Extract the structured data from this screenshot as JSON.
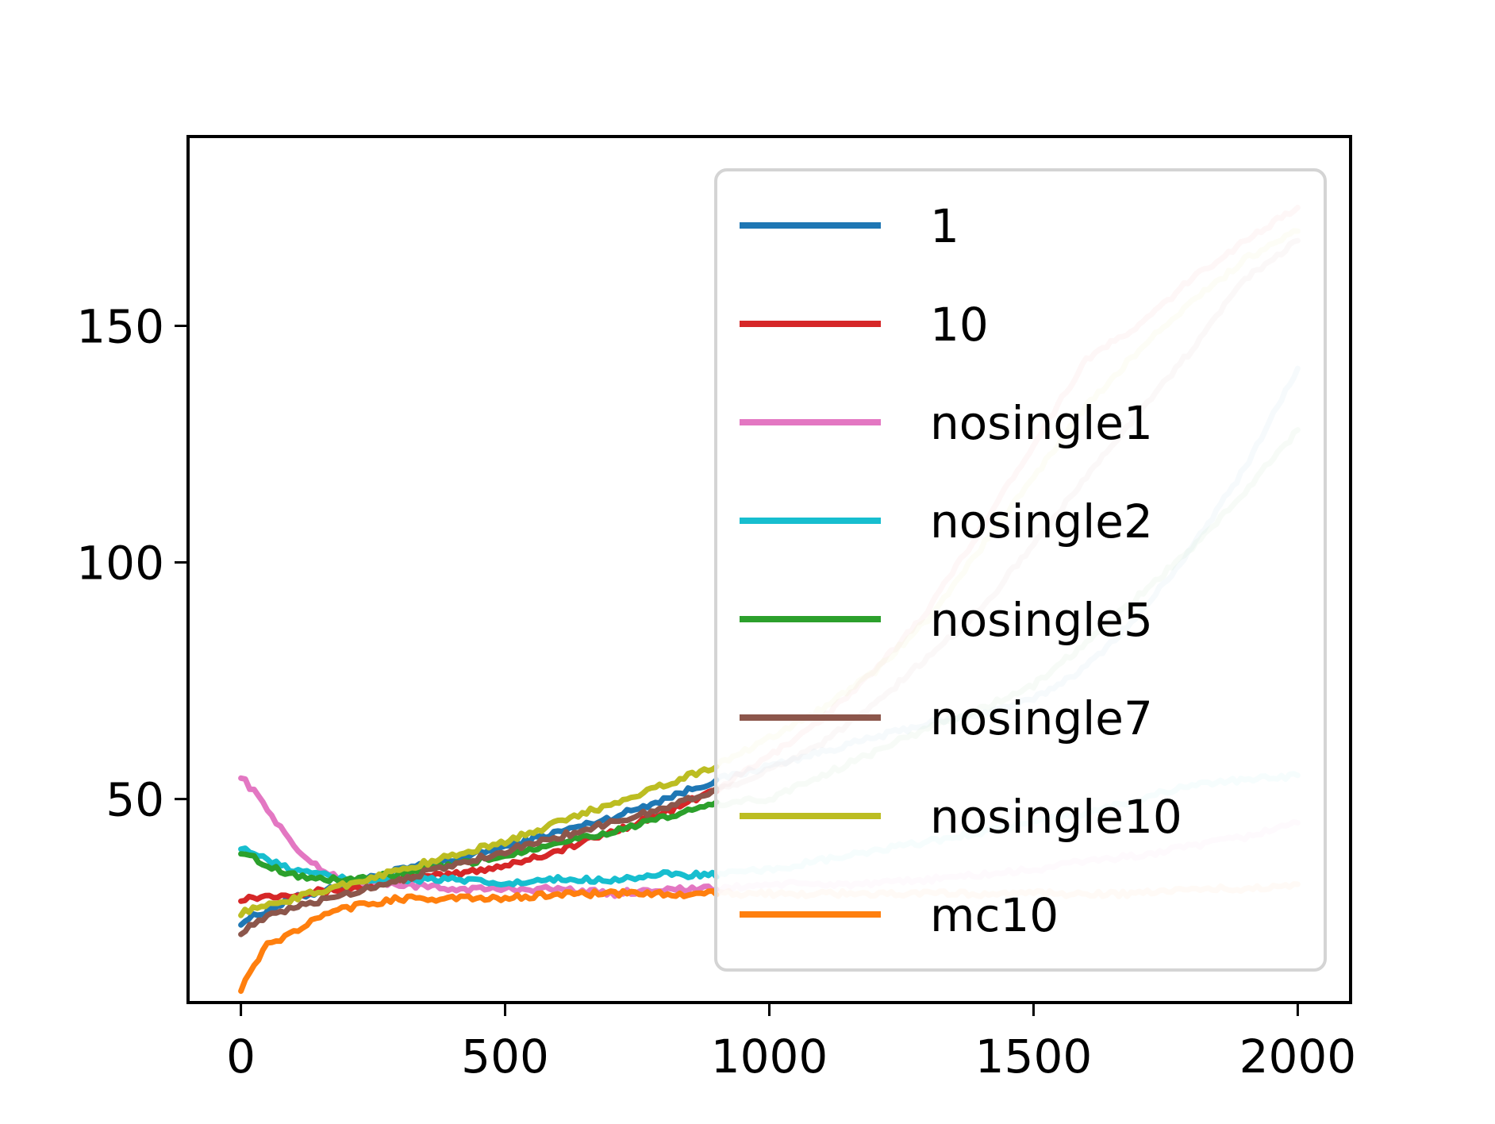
{
  "chart_data": {
    "type": "line",
    "title": "",
    "xlabel": "",
    "ylabel": "",
    "xlim": [
      -100,
      2100
    ],
    "ylim": [
      7,
      190
    ],
    "xticks": [
      0,
      500,
      1000,
      1500,
      2000
    ],
    "yticks": [
      50,
      100,
      150
    ],
    "grid": false,
    "legend_position": "top-right",
    "note_faded": "portion of each series at x > 900 is drawn semi-transparent (behind legend area)",
    "series": [
      {
        "name": "1",
        "color": "#1f77b4",
        "x": [
          0,
          100,
          200,
          300,
          400,
          500,
          600,
          700,
          800,
          900,
          1000,
          1100,
          1200,
          1300,
          1400,
          1500,
          1600,
          1700,
          1800,
          1900,
          2000
        ],
        "y": [
          24,
          29,
          32,
          35,
          37,
          40,
          43,
          46,
          50,
          54,
          57,
          60,
          63,
          66,
          68,
          71,
          78,
          89,
          103,
          120,
          141
        ]
      },
      {
        "name": "10",
        "color": "#d62728",
        "x": [
          0,
          100,
          200,
          300,
          400,
          500,
          600,
          700,
          800,
          900,
          1000,
          1100,
          1200,
          1300,
          1400,
          1500,
          1600,
          1700,
          1800,
          1900,
          2000
        ],
        "y": [
          29,
          30,
          31,
          33,
          34,
          36,
          39,
          43,
          47,
          52,
          59,
          67,
          77,
          90,
          107,
          125,
          143,
          150,
          160,
          168,
          175
        ]
      },
      {
        "name": "nosingle1",
        "color": "#e377c2",
        "x": [
          0,
          50,
          100,
          150,
          200,
          300,
          400,
          500,
          600,
          700,
          800,
          900,
          1000,
          1100,
          1200,
          1300,
          1400,
          1500,
          1600,
          1700,
          1800,
          1900,
          2000
        ],
        "y": [
          55,
          48,
          40,
          35,
          33,
          32,
          31,
          31,
          31,
          30,
          31,
          31,
          32,
          32,
          32,
          33,
          34,
          35,
          37,
          38,
          40,
          42,
          45
        ]
      },
      {
        "name": "nosingle2",
        "color": "#17becf",
        "x": [
          0,
          50,
          100,
          150,
          200,
          300,
          400,
          500,
          600,
          700,
          800,
          900,
          1000,
          1100,
          1200,
          1300,
          1400,
          1500,
          1600,
          1700,
          1800,
          1900,
          2000
        ],
        "y": [
          40,
          37,
          35,
          34,
          33,
          33,
          33,
          32,
          33,
          33,
          34,
          34,
          35,
          37,
          39,
          41,
          43,
          45,
          47,
          50,
          53,
          54,
          55
        ]
      },
      {
        "name": "nosingle5",
        "color": "#2ca02c",
        "x": [
          0,
          50,
          100,
          150,
          200,
          300,
          400,
          500,
          600,
          700,
          800,
          900,
          1000,
          1100,
          1200,
          1300,
          1400,
          1500,
          1600,
          1700,
          1800,
          1900,
          2000
        ],
        "y": [
          39,
          36,
          34,
          33,
          33,
          34,
          36,
          38,
          41,
          43,
          46,
          49,
          50,
          55,
          60,
          65,
          69,
          74,
          83,
          93,
          103,
          115,
          128
        ]
      },
      {
        "name": "nosingle7",
        "color": "#8c564b",
        "x": [
          0,
          50,
          100,
          200,
          300,
          400,
          500,
          600,
          700,
          800,
          900,
          1000,
          1100,
          1200,
          1300,
          1400,
          1500,
          1600,
          1700,
          1800,
          1900,
          2000
        ],
        "y": [
          22,
          25,
          27,
          30,
          33,
          36,
          39,
          42,
          45,
          48,
          52,
          56,
          62,
          70,
          80,
          90,
          104,
          118,
          132,
          145,
          160,
          168
        ]
      },
      {
        "name": "nosingle10",
        "color": "#bcbd22",
        "x": [
          0,
          100,
          200,
          300,
          400,
          500,
          600,
          700,
          800,
          900,
          1000,
          1100,
          1200,
          1300,
          1400,
          1500,
          1600,
          1700,
          1800,
          1900,
          2000
        ],
        "y": [
          26,
          29,
          32,
          35,
          38,
          41,
          45,
          49,
          53,
          57,
          63,
          69,
          77,
          88,
          103,
          118,
          133,
          145,
          155,
          164,
          170
        ]
      },
      {
        "name": "mc10",
        "color": "#ff7f0e",
        "x": [
          0,
          25,
          50,
          100,
          150,
          200,
          250,
          300,
          400,
          500,
          600,
          700,
          800,
          900,
          1000,
          1100,
          1200,
          1300,
          1400,
          1500,
          1600,
          1700,
          1800,
          1900,
          2000
        ],
        "y": [
          10,
          15,
          19,
          22,
          25,
          27,
          28,
          29,
          29,
          29,
          30,
          30,
          30,
          30,
          30,
          30,
          30,
          30,
          30,
          30,
          30,
          30,
          31,
          31,
          32
        ]
      }
    ]
  }
}
